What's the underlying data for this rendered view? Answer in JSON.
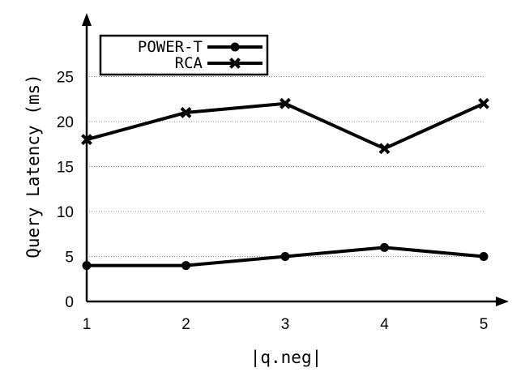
{
  "chart_data": {
    "type": "line",
    "title": "",
    "xlabel": "|q.neg|",
    "ylabel": "Query Latency (ms)",
    "x": [
      1,
      2,
      3,
      4,
      5
    ],
    "ylim": [
      0,
      30
    ],
    "yticks": [
      0,
      5,
      10,
      15,
      20,
      25
    ],
    "grid": "horizontal dotted",
    "legend_position": "top-left",
    "series": [
      {
        "name": "POWER-T",
        "marker": "circle",
        "values": [
          4,
          4,
          5,
          6,
          5
        ]
      },
      {
        "name": "RCA",
        "marker": "x",
        "values": [
          18,
          21,
          22,
          17,
          22
        ]
      }
    ]
  }
}
